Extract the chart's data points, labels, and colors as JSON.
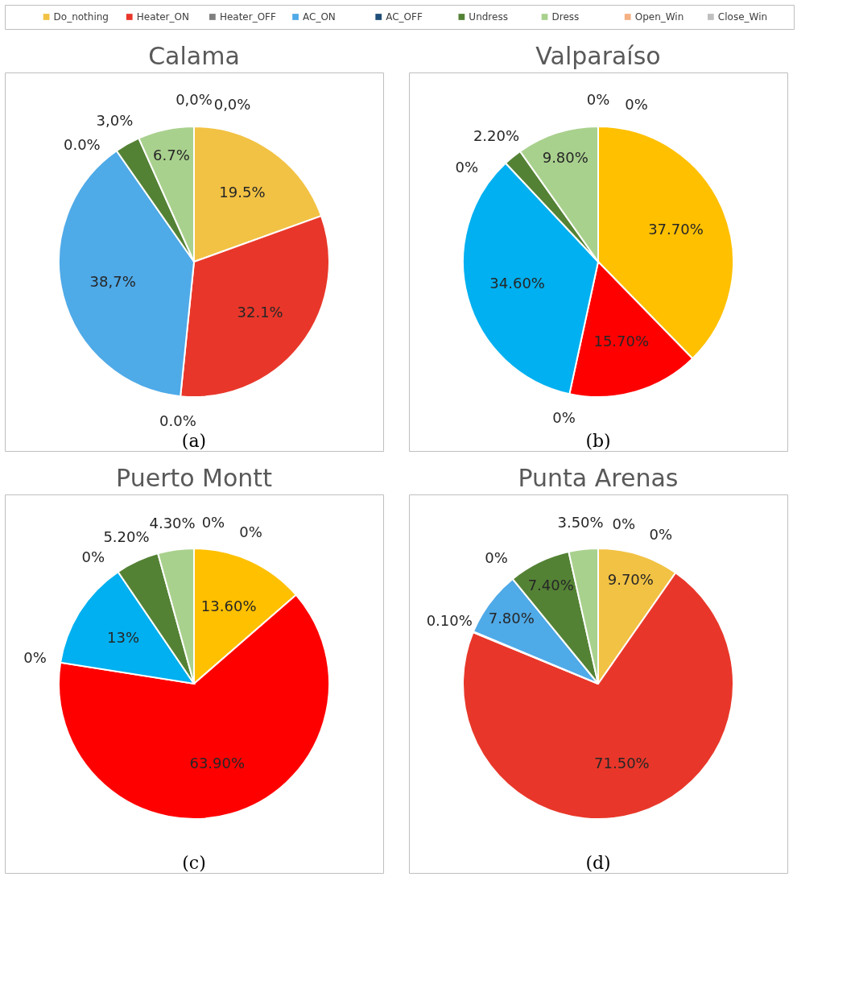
{
  "chart_data": [
    {
      "type": "pie",
      "title": "Calama",
      "legend": "top",
      "categories": [
        "Do_nothing",
        "Heater_ON",
        "Heater_OFF",
        "AC_ON",
        "AC_OFF",
        "Undress",
        "Dress",
        "Open_Win",
        "Close_Win"
      ],
      "values": [
        19.5,
        32.1,
        0.0,
        38.7,
        0.0,
        3.0,
        6.7,
        0.0,
        0.0
      ],
      "value_labels": [
        "19.5%",
        "32.1%",
        "0.0%",
        "38,7%",
        "0.0%",
        "3,0%",
        "6.7%",
        "0,0%",
        "0,0%"
      ],
      "colors": [
        "#f2c244",
        "#e8372a",
        "#7f7f7f",
        "#4faae8",
        "#1f4e79",
        "#548235",
        "#a9d18e",
        "#f4b183",
        "#bfbfbf"
      ],
      "annotations": [
        "(a)"
      ]
    },
    {
      "type": "pie",
      "title": "Valparaíso",
      "categories": [
        null,
        null,
        null,
        null,
        null,
        null,
        null,
        null,
        null
      ],
      "values": [
        37.7,
        15.7,
        0,
        34.6,
        0,
        2.2,
        9.8,
        0,
        0
      ],
      "value_labels": [
        "37.70%",
        "15.70%",
        "0%",
        "34.60%",
        "0%",
        "2.20%",
        "9.80%",
        "0%",
        "0%"
      ],
      "colors": [
        "#ffc000",
        "#ff0000",
        "#7f7f7f",
        "#00b0f0",
        "#1f4e79",
        "#548235",
        "#a9d18e",
        "#f4b183",
        "#bfbfbf"
      ],
      "annotations": [
        "(b)"
      ]
    },
    {
      "type": "pie",
      "title": "Puerto Montt",
      "categories": [
        null,
        null,
        null,
        null,
        null,
        null,
        null,
        null,
        null
      ],
      "values": [
        13.6,
        63.9,
        0,
        13,
        0,
        5.2,
        4.3,
        0,
        0
      ],
      "value_labels": [
        "13.60%",
        "63.90%",
        "0%",
        "13%",
        "0%",
        "5.20%",
        "4.30%",
        "0%",
        "0%"
      ],
      "colors": [
        "#ffc000",
        "#ff0000",
        "#7f7f7f",
        "#00b0f0",
        "#1f4e79",
        "#548235",
        "#a9d18e",
        "#f4b183",
        "#bfbfbf"
      ],
      "annotations": [
        "(c)"
      ]
    },
    {
      "type": "pie",
      "title": "Punta Arenas",
      "categories": [
        null,
        null,
        null,
        null,
        null,
        null,
        null,
        null,
        null
      ],
      "values": [
        9.7,
        71.5,
        0.1,
        7.8,
        0,
        7.4,
        3.5,
        0,
        0
      ],
      "value_labels": [
        "9.70%",
        "71.50%",
        "0.10%",
        "7.80%",
        "0%",
        "7.40%",
        "3.50%",
        "0%",
        "0%"
      ],
      "colors": [
        "#f2c244",
        "#e8372a",
        "#7f7f7f",
        "#4faae8",
        "#1f4e79",
        "#548235",
        "#a9d18e",
        "#f4b183",
        "#bfbfbf"
      ],
      "annotations": [
        "(d)"
      ]
    }
  ]
}
